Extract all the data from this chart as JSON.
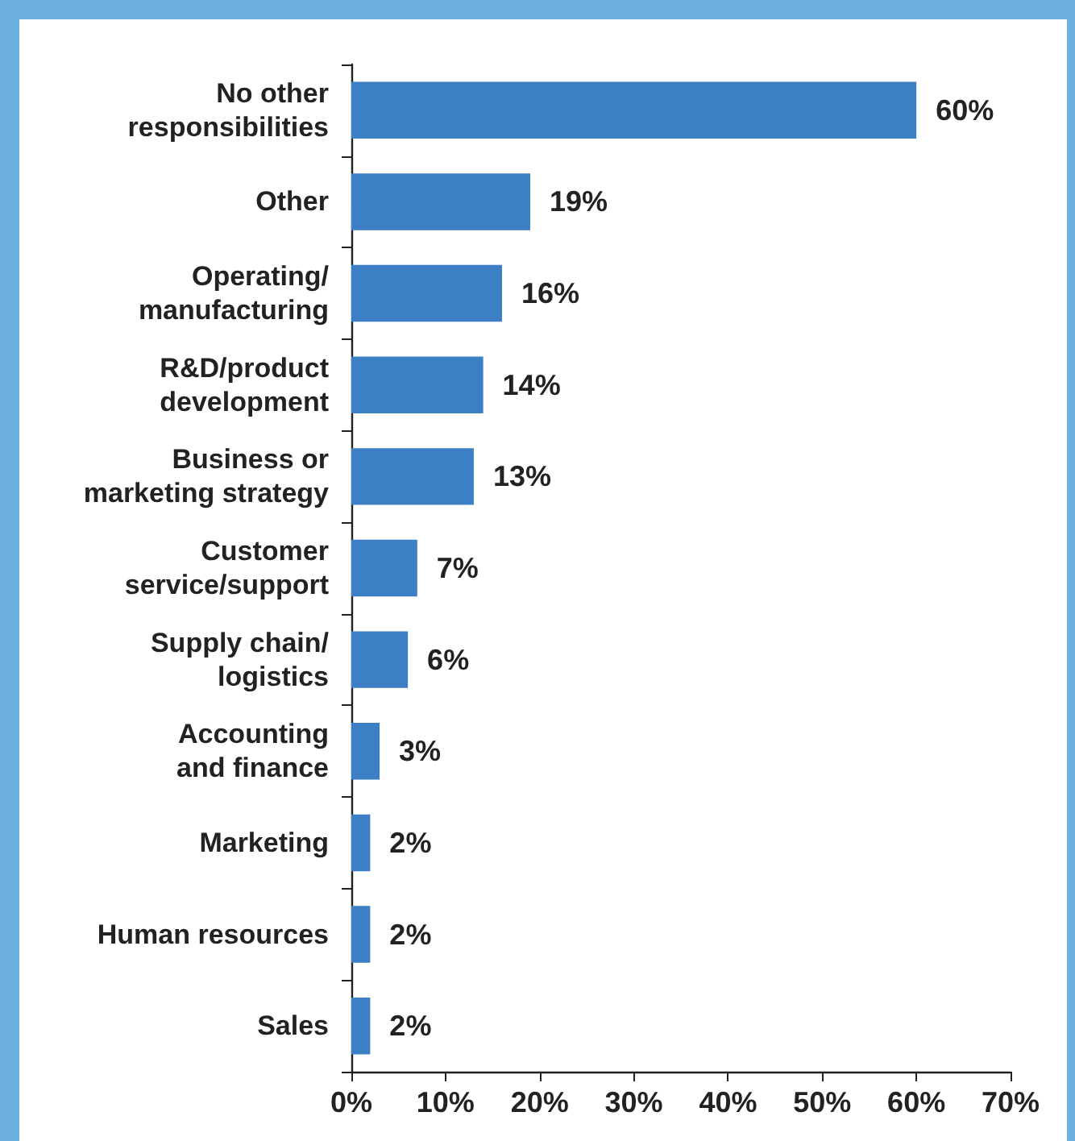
{
  "chart_data": {
    "type": "bar",
    "orientation": "horizontal",
    "categories": [
      "No other\nresponsibilities",
      "Other",
      "Operating/\nmanufacturing",
      "R&D/product\ndevelopment",
      "Business or\nmarketing strategy",
      "Customer\nservice/support",
      "Supply chain/\nlogistics",
      "Accounting\nand finance",
      "Marketing",
      "Human resources",
      "Sales"
    ],
    "values": [
      60,
      19,
      16,
      14,
      13,
      7,
      6,
      3,
      2,
      2,
      2
    ],
    "value_labels": [
      "60%",
      "19%",
      "16%",
      "14%",
      "13%",
      "7%",
      "6%",
      "3%",
      "2%",
      "2%",
      "2%"
    ],
    "color": "#3d7fc4",
    "xlim": [
      0,
      70
    ],
    "xticks": [
      {
        "value": 0,
        "label": "0%"
      },
      {
        "value": 10,
        "label": "10%"
      },
      {
        "value": 20,
        "label": "20%"
      },
      {
        "value": 30,
        "label": "30%"
      },
      {
        "value": 40,
        "label": "40%"
      },
      {
        "value": 50,
        "label": "50%"
      },
      {
        "value": 60,
        "label": "60%"
      },
      {
        "value": 70,
        "label": "70%"
      }
    ],
    "grid": false
  }
}
